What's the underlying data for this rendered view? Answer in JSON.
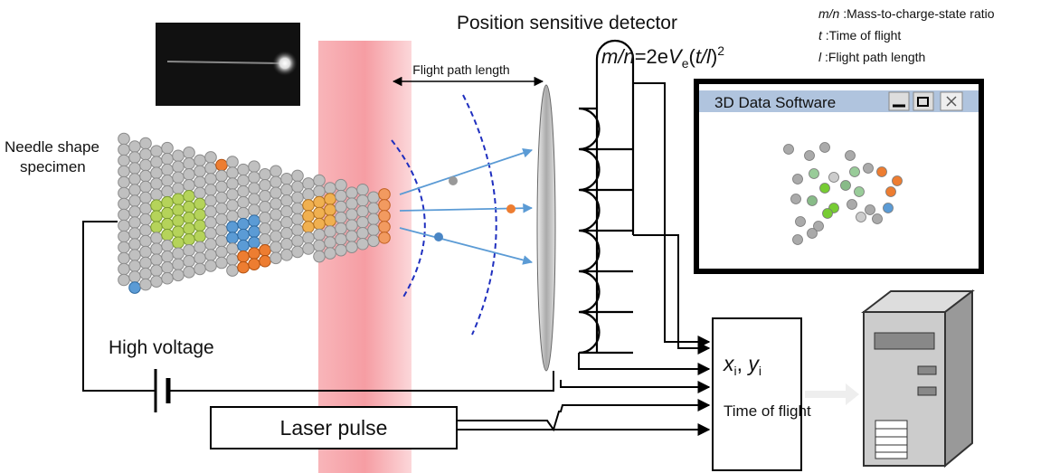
{
  "detector_label": "Position sensitive detector",
  "legend": [
    {
      "symbol": "m/n",
      "text": " :Mass-to-charge-state ratio"
    },
    {
      "symbol": "t",
      "text": " :Time of flight"
    },
    {
      "symbol": "l",
      "text": " :Flight path length"
    }
  ],
  "formula": {
    "lhs": "m/n",
    "eq": "=2e",
    "v": "V",
    "sub": "e",
    "open": "(",
    "t": "t/l",
    "close": ")",
    "sup": "2"
  },
  "window": {
    "title": "3D Data Software"
  },
  "flight_path_label": "Flight path length",
  "specimen_label": [
    "Needle shape",
    "specimen"
  ],
  "high_voltage_label": "High voltage",
  "laser_label": "Laser pulse",
  "tof_box": {
    "x": "x",
    "x_sub": "i",
    "sep": ", ",
    "y": "y",
    "y_sub": "i",
    "label": "Time of flight"
  }
}
